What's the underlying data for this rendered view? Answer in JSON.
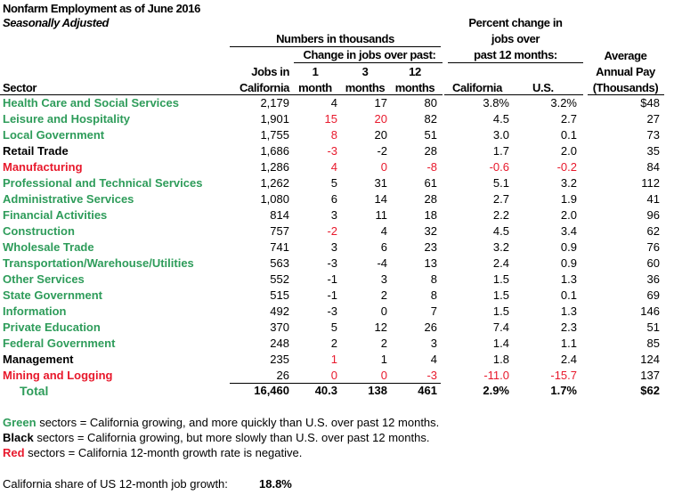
{
  "title": "Nonfarm Employment as of June 2016",
  "subtitle": "Seasonally Adjusted",
  "headers": {
    "numbers_in_thousands": "Numbers in thousands",
    "change_in_jobs": "Change in jobs over past:",
    "percent_change_1": "Percent change in",
    "percent_change_2": "jobs over",
    "percent_change_3": "past 12 months:",
    "average": "Average",
    "annual_pay": "Annual Pay",
    "thousands": "(Thousands)",
    "sector": "Sector",
    "jobs_in": "Jobs in",
    "california": "California",
    "m1_top": "1",
    "m1_bottom": "month",
    "m3_top": "3",
    "m3_bottom": "months",
    "m12_top": "12",
    "m12_bottom": "months",
    "pct_california": "California",
    "pct_us": "U.S."
  },
  "colors": {
    "green": "#2e9c5a",
    "red": "#e8192c",
    "black": "#000000"
  },
  "rows": [
    {
      "sector": "Health Care and Social Services",
      "color": "green",
      "cells": [
        "2,179",
        "4",
        "17",
        "80",
        "3.8%",
        "3.2%",
        "$48"
      ],
      "red": []
    },
    {
      "sector": "Leisure and Hospitality",
      "color": "green",
      "cells": [
        "1,901",
        "15",
        "20",
        "82",
        "4.5",
        "2.7",
        "27"
      ],
      "red": [
        1,
        2
      ]
    },
    {
      "sector": "Local Government",
      "color": "green",
      "cells": [
        "1,755",
        "8",
        "20",
        "51",
        "3.0",
        "0.1",
        "73"
      ],
      "red": [
        1
      ]
    },
    {
      "sector": "Retail Trade",
      "color": "black",
      "cells": [
        "1,686",
        "-3",
        "-2",
        "28",
        "1.7",
        "2.0",
        "35"
      ],
      "red": [
        1
      ]
    },
    {
      "sector": "Manufacturing",
      "color": "red",
      "cells": [
        "1,286",
        "4",
        "0",
        "-8",
        "-0.6",
        "-0.2",
        "84"
      ],
      "red": [
        1,
        2,
        3,
        4,
        5
      ]
    },
    {
      "sector": "Professional and Technical Services",
      "color": "green",
      "cells": [
        "1,262",
        "5",
        "31",
        "61",
        "5.1",
        "3.2",
        "112"
      ],
      "red": []
    },
    {
      "sector": "Administrative Services",
      "color": "green",
      "cells": [
        "1,080",
        "6",
        "14",
        "28",
        "2.7",
        "1.9",
        "41"
      ],
      "red": []
    },
    {
      "sector": "Financial Activities",
      "color": "green",
      "cells": [
        "814",
        "3",
        "11",
        "18",
        "2.2",
        "2.0",
        "96"
      ],
      "red": []
    },
    {
      "sector": "Construction",
      "color": "green",
      "cells": [
        "757",
        "-2",
        "4",
        "32",
        "4.5",
        "3.4",
        "62"
      ],
      "red": [
        1
      ]
    },
    {
      "sector": "Wholesale Trade",
      "color": "green",
      "cells": [
        "741",
        "3",
        "6",
        "23",
        "3.2",
        "0.9",
        "76"
      ],
      "red": []
    },
    {
      "sector": "Transportation/Warehouse/Utilities",
      "color": "green",
      "cells": [
        "563",
        "-3",
        "-4",
        "13",
        "2.4",
        "0.9",
        "60"
      ],
      "red": []
    },
    {
      "sector": "Other Services",
      "color": "green",
      "cells": [
        "552",
        "-1",
        "3",
        "8",
        "1.5",
        "1.3",
        "36"
      ],
      "red": []
    },
    {
      "sector": "State Government",
      "color": "green",
      "cells": [
        "515",
        "-1",
        "2",
        "8",
        "1.5",
        "0.1",
        "69"
      ],
      "red": []
    },
    {
      "sector": "Information",
      "color": "green",
      "cells": [
        "492",
        "-3",
        "0",
        "7",
        "1.5",
        "1.3",
        "146"
      ],
      "red": []
    },
    {
      "sector": "Private Education",
      "color": "green",
      "cells": [
        "370",
        "5",
        "12",
        "26",
        "7.4",
        "2.3",
        "51"
      ],
      "red": []
    },
    {
      "sector": "Federal Government",
      "color": "green",
      "cells": [
        "248",
        "2",
        "2",
        "3",
        "1.4",
        "1.1",
        "85"
      ],
      "red": []
    },
    {
      "sector": "Management",
      "color": "black",
      "cells": [
        "235",
        "1",
        "1",
        "4",
        "1.8",
        "2.4",
        "124"
      ],
      "red": [
        1
      ]
    },
    {
      "sector": "Mining and Logging",
      "color": "red",
      "cells": [
        "26",
        "0",
        "0",
        "-3",
        "-11.0",
        "-15.7",
        "137"
      ],
      "red": [
        1,
        2,
        3,
        4,
        5
      ]
    }
  ],
  "total": {
    "sector": "Total",
    "color": "green",
    "cells": [
      "16,460",
      "40.3",
      "138",
      "461",
      "2.9%",
      "1.7%",
      "$62"
    ]
  },
  "legend": {
    "green_word": "Green",
    "green_text": " sectors = California growing, and more quickly than U.S. over past 12 months.",
    "black_word": "Black",
    "black_text": " sectors = California growing, but more slowly than U.S. over past 12 months.",
    "red_word": "Red",
    "red_text": " sectors = California 12-month growth rate is negative."
  },
  "share": {
    "label": "California share of US 12-month job growth:",
    "value": "18.8%"
  }
}
